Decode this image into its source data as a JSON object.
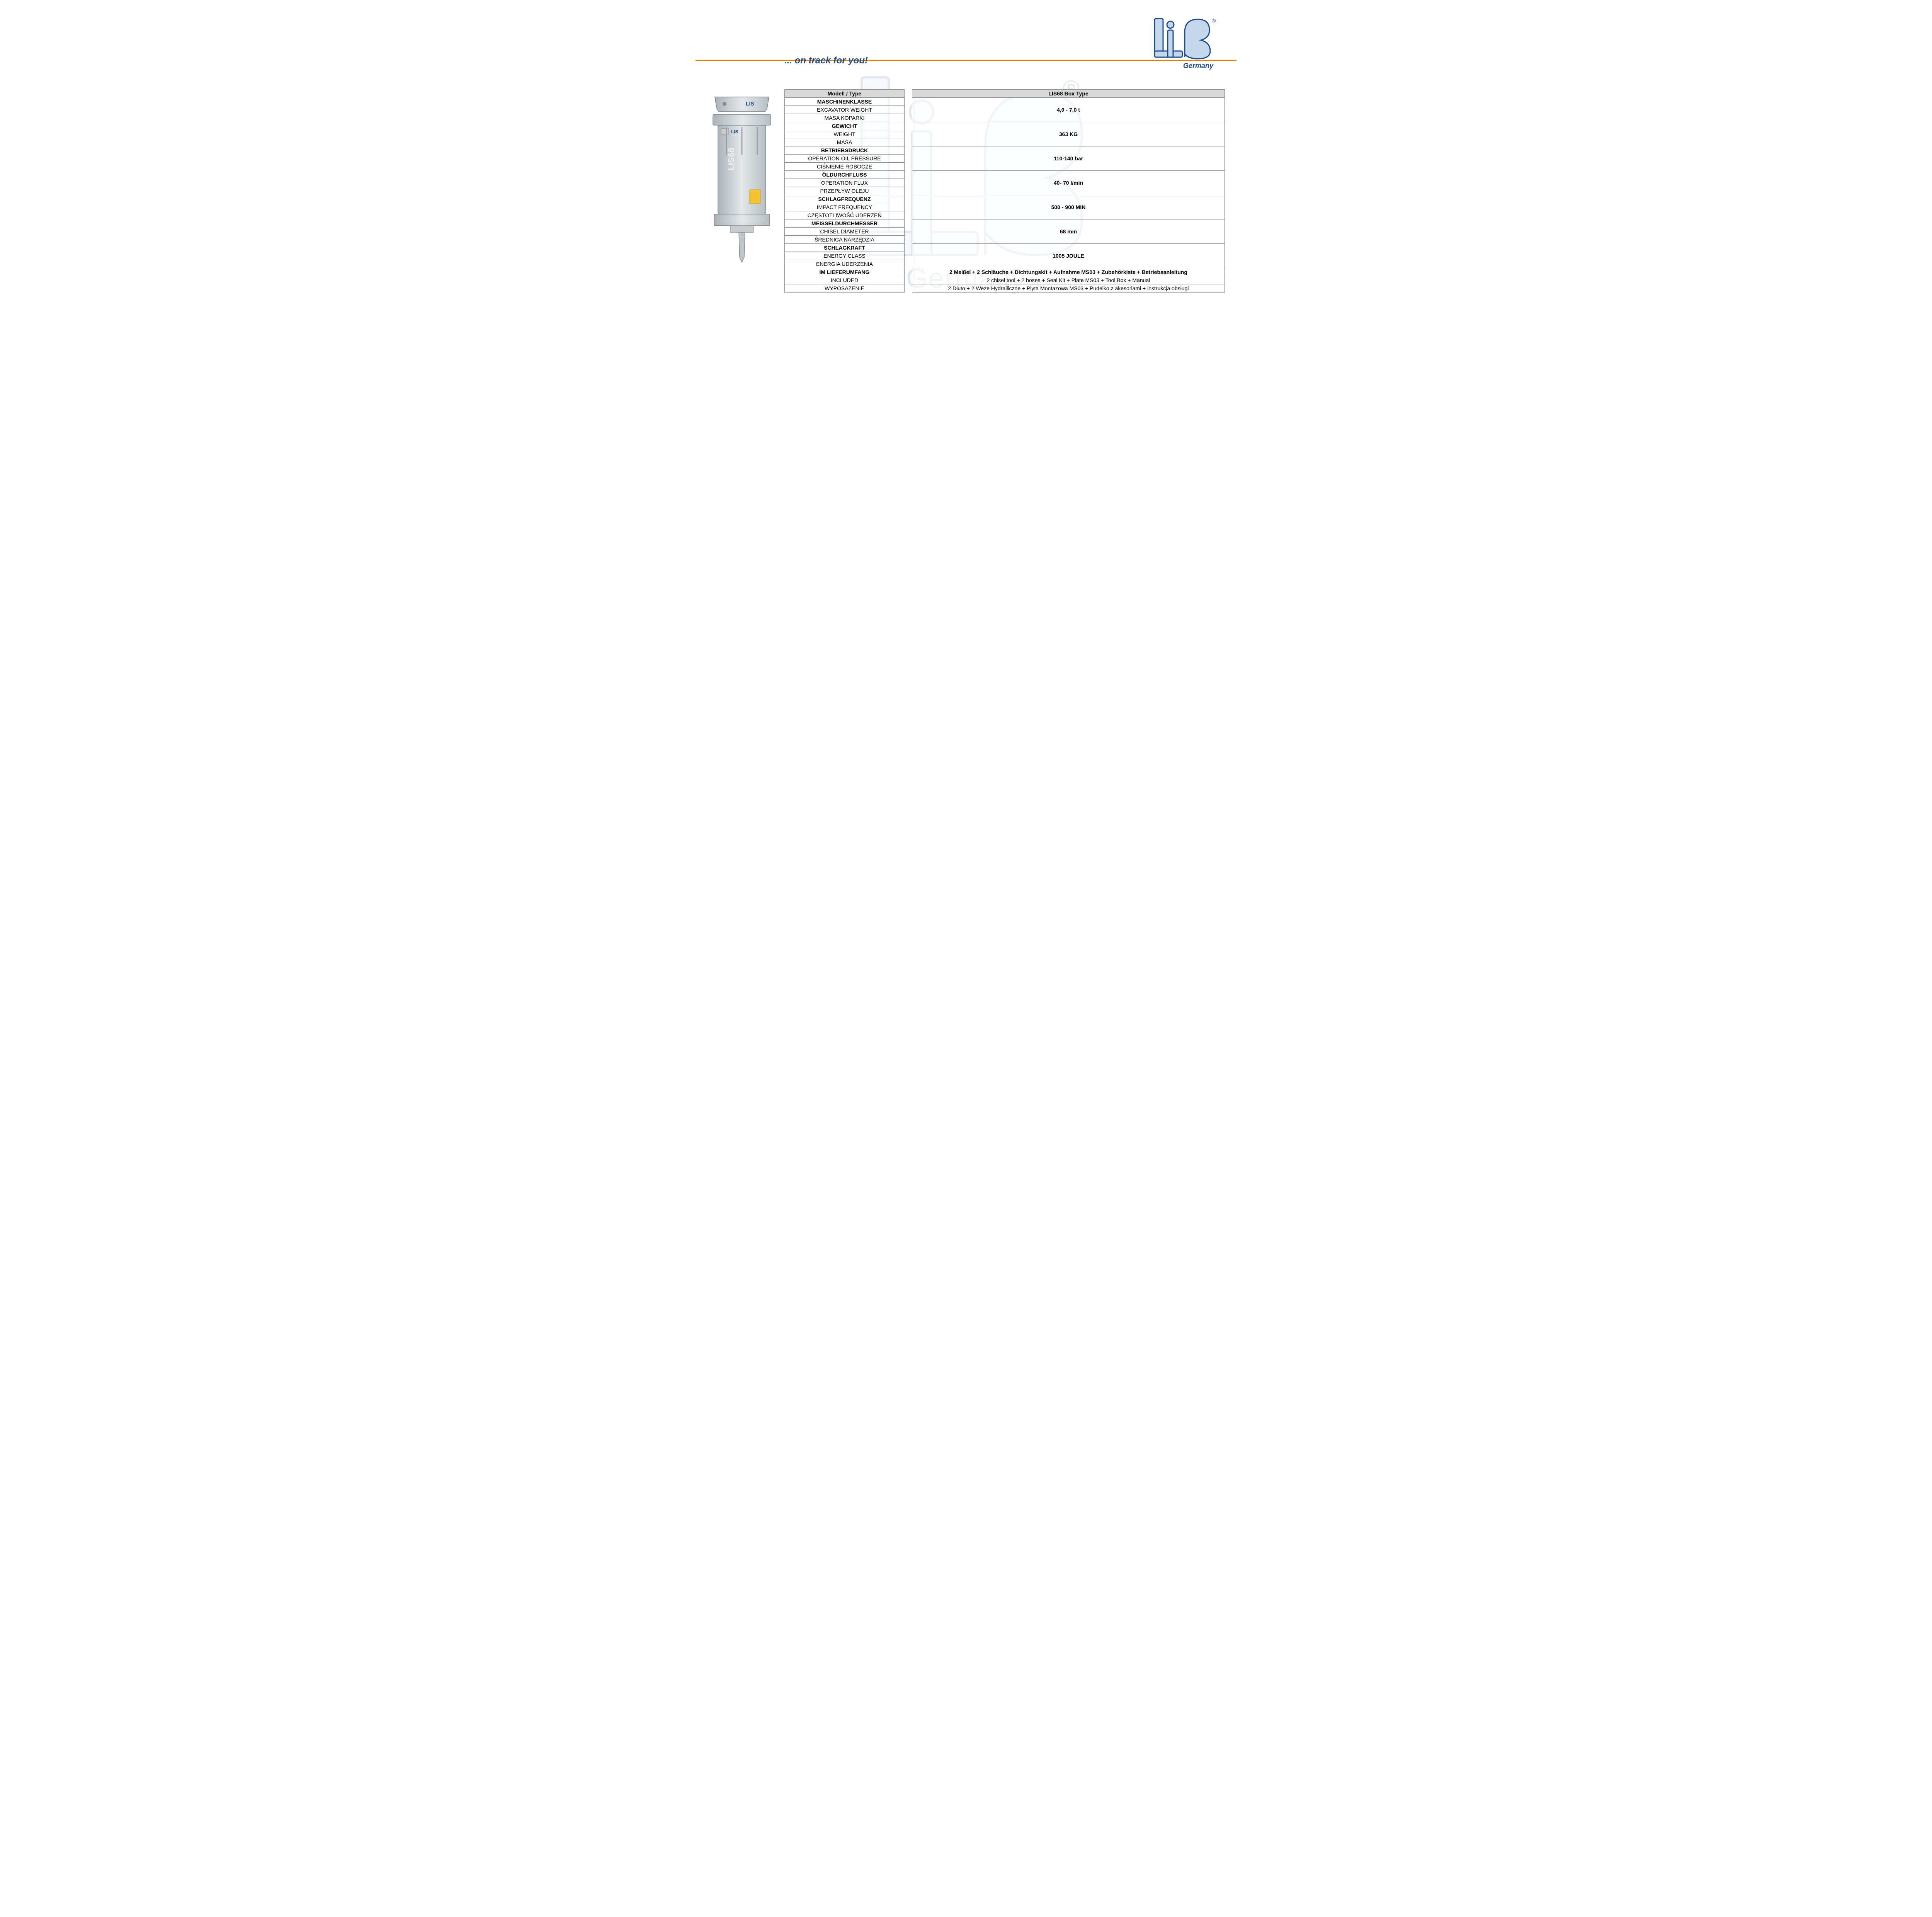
{
  "tagline": "... on track for you!",
  "brand_sub": "Germany",
  "colors": {
    "accent_orange": "#e87800",
    "brand_blue": "#1e4e8c",
    "logo_fill": "#c4d7ed",
    "header_bg": "#d9d9d9",
    "border": "#888888"
  },
  "table": {
    "header": {
      "label": "Modell  /  Type",
      "value": "LIS68 Box Type"
    },
    "groups": [
      {
        "labels": [
          "MASCHINENKLASSE",
          "EXCAVATOR WEIGHT",
          "MASA KOPARKI"
        ],
        "value": "4,0 - 7,0 t"
      },
      {
        "labels": [
          "GEWICHT",
          "WEIGHT",
          "MASA"
        ],
        "value": "363 KG"
      },
      {
        "labels": [
          "BETRIEBSDRUCK",
          "OPERATION OIL PRESSURE",
          "CIŚNIENIE ROBOCZE"
        ],
        "value": "110-140 bar"
      },
      {
        "labels": [
          "ÖLDURCHFLUSS",
          "OPERATION FLUX",
          "PRZEPŁYW OLEJU"
        ],
        "value": "40- 70 l/min"
      },
      {
        "labels": [
          "SCHLAGFREQUENZ",
          "IMPACT FREQUENCY",
          "CZĘSTOTLIWOŚĆ UDERZEŃ"
        ],
        "value": "500 - 900 MIN"
      },
      {
        "labels": [
          "MEISSELDURCHMESSER",
          "CHISEL DIAMETER",
          "ŚREDNICA NARZĘDZIA"
        ],
        "value": "68 mm"
      },
      {
        "labels": [
          "SCHLAGKRAFT",
          "ENERGY CLASS",
          "ENERGIA UDERZENIA"
        ],
        "value": "1005 JOULE"
      }
    ],
    "included": {
      "rows": [
        {
          "label": "IM LIEFERUMFANG",
          "value": "2 Meißel + 2 Schläuche +  Dichtungskit +  Aufnahme MS03 + Zubehörkiste + Betriebsanleitung",
          "bold": true
        },
        {
          "label": "INCLUDED",
          "value": "2 chisel tool + 2 hoses + Seal Kit + Plate MS03 +  Tool Box  + Manual",
          "bold": false
        },
        {
          "label": "WYPOSAZENIE",
          "value": "2 Dłuto + 2 Weze Hydrailiczne + Plyta Montazowa MS03 +  Pudelko z akesoriami + instrukcja obsługi",
          "bold": false
        }
      ]
    }
  },
  "product_label": "LIS68"
}
